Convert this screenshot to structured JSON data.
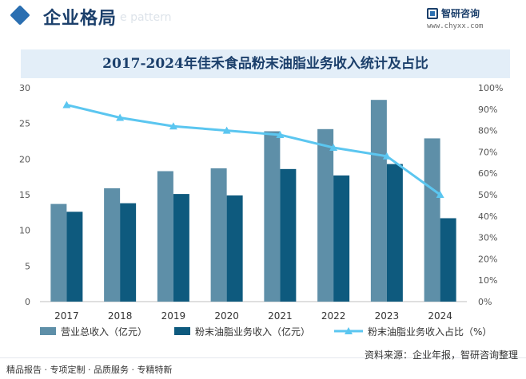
{
  "header": {
    "title": "企业格局",
    "watermark": "e pattern"
  },
  "brand": {
    "name": "智研咨询",
    "url": "www.chyxx.com"
  },
  "footer": {
    "left": "精品报告 · 专项定制 · 品质服务 · 专精特新",
    "source": "资料来源：企业年报，智研咨询整理"
  },
  "colors": {
    "revenue_total": "#5e8fa8",
    "revenue_flour": "#0e5a7e",
    "ratio_line": "#5bc6f0",
    "title_bg": "#e3eef8",
    "accent": "#1b3f6b"
  },
  "chart_data": {
    "type": "bar",
    "title": "2017-2024年佳禾食品粉末油脂业务收入统计及占比",
    "categories": [
      "2017",
      "2018",
      "2019",
      "2020",
      "2021",
      "2022",
      "2023",
      "2024"
    ],
    "series": [
      {
        "name": "营业总收入（亿元）",
        "type": "bar",
        "axis": "left",
        "values": [
          13.7,
          15.9,
          18.3,
          18.7,
          23.9,
          24.2,
          28.3,
          22.9
        ]
      },
      {
        "name": "粉末油脂业务收入（亿元）",
        "type": "bar",
        "axis": "left",
        "values": [
          12.6,
          13.8,
          15.1,
          14.9,
          18.6,
          17.7,
          19.3,
          11.7
        ]
      },
      {
        "name": "粉末油脂业务收入占比（%）",
        "type": "line",
        "axis": "right",
        "values": [
          92,
          86,
          82,
          80,
          78,
          72,
          68,
          50
        ]
      }
    ],
    "y_left": {
      "min": 0,
      "max": 30,
      "ticks": [
        "0",
        "5",
        "10",
        "15",
        "20",
        "25",
        "30"
      ]
    },
    "y_right": {
      "min": 0,
      "max": 100,
      "ticks": [
        "0%",
        "10%",
        "20%",
        "30%",
        "40%",
        "50%",
        "60%",
        "70%",
        "80%",
        "90%",
        "100%"
      ]
    },
    "grid": false,
    "legend_position": "bottom"
  }
}
